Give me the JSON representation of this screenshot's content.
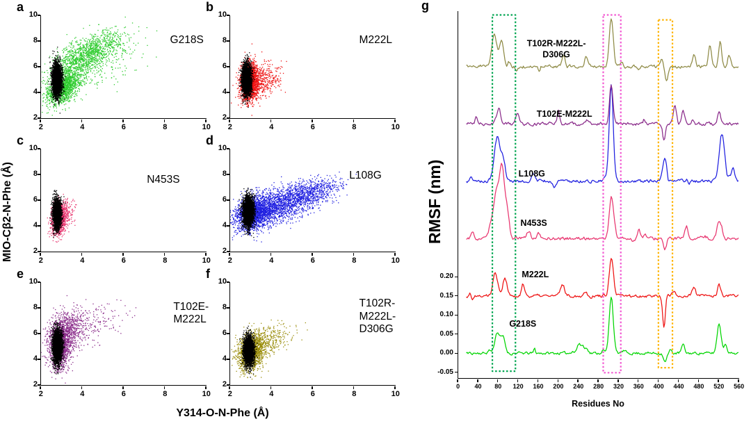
{
  "figure": {
    "scatter_xlabel": "Y314-O-N-Phe (Å)",
    "scatter_ylabel": "MIO-Cβ2-N-Phe (Å)"
  },
  "chart_data": [
    {
      "type": "scatter",
      "panel": "a",
      "label": "G218S",
      "color": "#2ecc2e",
      "seed": 101,
      "xlim": [
        2,
        10
      ],
      "ylim": [
        2,
        10
      ],
      "xticks": [
        2,
        4,
        6,
        8,
        10
      ],
      "yticks": [
        2,
        4,
        6,
        8,
        10
      ],
      "label_pos": [
        0.62,
        0.06
      ],
      "clusters": [
        {
          "cx": 3.05,
          "cy": 4.35,
          "sx": 0.38,
          "sy": 0.62,
          "rho": 0.35,
          "n": 1300
        },
        {
          "cx": 4.55,
          "cy": 7.25,
          "sx": 0.85,
          "sy": 0.8,
          "rho": 0.6,
          "n": 850
        },
        {
          "cx": 3.6,
          "cy": 5.9,
          "sx": 0.65,
          "sy": 1.0,
          "rho": 0.45,
          "n": 650
        },
        {
          "cx": 5.3,
          "cy": 6.3,
          "sx": 0.9,
          "sy": 1.1,
          "rho": 0.2,
          "n": 140
        }
      ],
      "black_cluster": {
        "cx": 2.78,
        "cy": 5.0,
        "sx": 0.11,
        "sy": 0.62,
        "n": 3200
      }
    },
    {
      "type": "scatter",
      "panel": "b",
      "label": "M222L",
      "color": "#ee1111",
      "seed": 102,
      "xlim": [
        2,
        10
      ],
      "ylim": [
        2,
        10
      ],
      "xticks": [
        2,
        4,
        6,
        8,
        10
      ],
      "yticks": [
        2,
        4,
        6,
        8,
        10
      ],
      "label_pos": [
        0.62,
        0.06
      ],
      "clusters": [
        {
          "cx": 2.92,
          "cy": 4.85,
          "sx": 0.2,
          "sy": 0.72,
          "rho": 0.1,
          "n": 1900
        },
        {
          "cx": 3.35,
          "cy": 4.75,
          "sx": 0.42,
          "sy": 0.75,
          "rho": 0.4,
          "n": 450
        },
        {
          "cx": 4.05,
          "cy": 5.0,
          "sx": 0.3,
          "sy": 0.5,
          "rho": 0.2,
          "n": 70
        }
      ],
      "black_cluster": {
        "cx": 2.8,
        "cy": 5.05,
        "sx": 0.11,
        "sy": 0.6,
        "n": 3000
      }
    },
    {
      "type": "scatter",
      "panel": "c",
      "label": "N453S",
      "color": "#e8356f",
      "seed": 103,
      "xlim": [
        2,
        10
      ],
      "ylim": [
        2,
        10
      ],
      "xticks": [
        2,
        4,
        6,
        8,
        10
      ],
      "yticks": [
        2,
        4,
        6,
        8,
        10
      ],
      "label_pos": [
        0.48,
        0.12
      ],
      "clusters": [
        {
          "cx": 2.85,
          "cy": 4.55,
          "sx": 0.16,
          "sy": 0.55,
          "rho": 0.1,
          "n": 1300
        },
        {
          "cx": 3.05,
          "cy": 4.9,
          "sx": 0.28,
          "sy": 0.65,
          "rho": 0.3,
          "n": 280
        }
      ],
      "black_cluster": {
        "cx": 2.78,
        "cy": 4.95,
        "sx": 0.1,
        "sy": 0.55,
        "n": 2600
      }
    },
    {
      "type": "scatter",
      "panel": "d",
      "label": "L108G",
      "color": "#1f1fe0",
      "seed": 104,
      "xlim": [
        2,
        10
      ],
      "ylim": [
        2,
        10
      ],
      "xticks": [
        2,
        4,
        6,
        8,
        10
      ],
      "yticks": [
        2,
        4,
        6,
        8,
        10
      ],
      "label_pos": [
        0.56,
        0.08
      ],
      "clusters": [
        {
          "cx": 3.15,
          "cy": 5.0,
          "sx": 0.42,
          "sy": 0.7,
          "rho": 0.3,
          "n": 1600
        },
        {
          "cx": 4.4,
          "cy": 5.6,
          "sx": 0.95,
          "sy": 0.75,
          "rho": 0.55,
          "n": 1600
        },
        {
          "cx": 5.9,
          "cy": 6.6,
          "sx": 0.7,
          "sy": 0.55,
          "rho": 0.45,
          "n": 450
        },
        {
          "cx": 6.9,
          "cy": 7.1,
          "sx": 0.35,
          "sy": 0.35,
          "rho": 0.2,
          "n": 50
        }
      ],
      "black_cluster": {
        "cx": 2.88,
        "cy": 5.1,
        "sx": 0.13,
        "sy": 0.6,
        "n": 3000
      }
    },
    {
      "type": "scatter",
      "panel": "e",
      "label": "T102E-M222L",
      "label_lines": [
        "T102E-",
        "M222L"
      ],
      "color": "#8a2b8a",
      "seed": 105,
      "xlim": [
        2,
        10
      ],
      "ylim": [
        2,
        10
      ],
      "xticks": [
        2,
        4,
        6,
        8,
        10
      ],
      "yticks": [
        2,
        4,
        6,
        8,
        10
      ],
      "label_pos": [
        0.64,
        0.06
      ],
      "clusters": [
        {
          "cx": 2.95,
          "cy": 5.15,
          "sx": 0.28,
          "sy": 0.95,
          "rho": 0.15,
          "n": 1500
        },
        {
          "cx": 3.35,
          "cy": 6.3,
          "sx": 0.5,
          "sy": 0.85,
          "rho": 0.4,
          "n": 480
        },
        {
          "cx": 4.2,
          "cy": 6.7,
          "sx": 0.8,
          "sy": 0.8,
          "rho": 0.3,
          "n": 140
        },
        {
          "cx": 5.2,
          "cy": 7.1,
          "sx": 0.7,
          "sy": 0.7,
          "rho": 0.2,
          "n": 40
        }
      ],
      "black_cluster": {
        "cx": 2.8,
        "cy": 5.0,
        "sx": 0.11,
        "sy": 0.65,
        "n": 3000
      }
    },
    {
      "type": "scatter",
      "panel": "f",
      "label": "T102R-M222L-D306G",
      "label_lines": [
        "T102R-",
        "M222L-",
        "D306G"
      ],
      "color": "#9a8d0c",
      "seed": 106,
      "xlim": [
        2,
        10
      ],
      "ylim": [
        2,
        10
      ],
      "xticks": [
        2,
        4,
        6,
        8,
        10
      ],
      "yticks": [
        2,
        4,
        6,
        8,
        10
      ],
      "label_pos": [
        0.62,
        0.03
      ],
      "clusters": [
        {
          "cx": 3.0,
          "cy": 4.55,
          "sx": 0.3,
          "sy": 0.68,
          "rho": 0.2,
          "n": 1500
        },
        {
          "cx": 3.5,
          "cy": 5.2,
          "sx": 0.5,
          "sy": 0.7,
          "rho": 0.5,
          "n": 380
        },
        {
          "cx": 4.3,
          "cy": 5.6,
          "sx": 0.6,
          "sy": 0.55,
          "rho": 0.4,
          "n": 70
        }
      ],
      "black_cluster": {
        "cx": 2.9,
        "cy": 4.65,
        "sx": 0.12,
        "sy": 0.55,
        "n": 3000
      }
    },
    {
      "type": "line",
      "panel": "g",
      "xlabel": "Residues No",
      "ylabel": "RMSF (nm)",
      "xlim": [
        0,
        560
      ],
      "ylim": [
        -0.065,
        0.895
      ],
      "xticks": [
        0,
        40,
        80,
        120,
        160,
        200,
        240,
        280,
        320,
        360,
        400,
        440,
        480,
        520,
        560
      ],
      "ytick_labels": [
        "0.20",
        "0.15",
        "0.10",
        "0.05",
        "0.00",
        "-0.05"
      ],
      "series": [
        {
          "label": "G218S",
          "color": "#00d500",
          "baseline": 0.0,
          "noise": 0.006,
          "seed": 11,
          "label_x": 130,
          "label_y": 0.075,
          "peaks": [
            {
              "c": 78,
              "w": 5,
              "h": 0.055
            },
            {
              "c": 90,
              "w": 4,
              "h": 0.035
            },
            {
              "c": 248,
              "w": 3,
              "h": 0.02
            },
            {
              "c": 305,
              "w": 4,
              "h": 0.15
            },
            {
              "c": 412,
              "w": 3,
              "h": -0.028
            },
            {
              "c": 448,
              "w": 3,
              "h": 0.022
            },
            {
              "c": 520,
              "w": 4,
              "h": 0.078
            },
            {
              "c": 533,
              "w": 3,
              "h": 0.03
            }
          ]
        },
        {
          "label": "M222L",
          "color": "#ee1111",
          "baseline": 0.15,
          "noise": 0.007,
          "seed": 22,
          "label_x": 155,
          "label_y": 0.205,
          "peaks": [
            {
              "c": 74,
              "w": 5,
              "h": 0.058
            },
            {
              "c": 93,
              "w": 4,
              "h": 0.048
            },
            {
              "c": 130,
              "w": 3,
              "h": 0.02
            },
            {
              "c": 208,
              "w": 4,
              "h": 0.03
            },
            {
              "c": 305,
              "w": 4,
              "h": 0.095
            },
            {
              "c": 410,
              "w": 2.5,
              "h": -0.085
            },
            {
              "c": 470,
              "w": 3,
              "h": 0.025
            },
            {
              "c": 520,
              "w": 3,
              "h": 0.028
            }
          ]
        },
        {
          "label": "N453S",
          "color": "#e8356f",
          "baseline": 0.3,
          "noise": 0.007,
          "seed": 33,
          "label_x": 152,
          "label_y": 0.338,
          "peaks": [
            {
              "c": 76,
              "w": 7,
              "h": 0.12
            },
            {
              "c": 88,
              "w": 5,
              "h": 0.16
            },
            {
              "c": 98,
              "w": 4,
              "h": 0.06
            },
            {
              "c": 305,
              "w": 4,
              "h": 0.105
            },
            {
              "c": 360,
              "w": 3,
              "h": 0.025
            },
            {
              "c": 412,
              "w": 3,
              "h": -0.03
            },
            {
              "c": 455,
              "w": 3,
              "h": 0.03
            },
            {
              "c": 520,
              "w": 4,
              "h": 0.045
            }
          ]
        },
        {
          "label": "L108G",
          "color": "#1f1fe0",
          "baseline": 0.45,
          "noise": 0.007,
          "seed": 44,
          "label_x": 148,
          "label_y": 0.468,
          "peaks": [
            {
              "c": 78,
              "w": 6,
              "h": 0.115
            },
            {
              "c": 90,
              "w": 4,
              "h": 0.05
            },
            {
              "c": 150,
              "w": 3,
              "h": 0.02
            },
            {
              "c": 305,
              "w": 4,
              "h": 0.25
            },
            {
              "c": 412,
              "w": 4,
              "h": 0.06
            },
            {
              "c": 525,
              "w": 5,
              "h": 0.12
            },
            {
              "c": 548,
              "w": 3,
              "h": 0.04
            }
          ]
        },
        {
          "label": "T102E-M222L",
          "color": "#8a2b8a",
          "baseline": 0.6,
          "noise": 0.007,
          "seed": 55,
          "label_x": 213,
          "label_y": 0.625,
          "peaks": [
            {
              "c": 80,
              "w": 4,
              "h": 0.045
            },
            {
              "c": 118,
              "w": 3,
              "h": 0.03
            },
            {
              "c": 200,
              "w": 3,
              "h": 0.025
            },
            {
              "c": 305,
              "w": 3.5,
              "h": 0.105
            },
            {
              "c": 410,
              "w": 2.5,
              "h": -0.045
            },
            {
              "c": 432,
              "w": 3,
              "h": 0.05
            },
            {
              "c": 448,
              "w": 3,
              "h": 0.035
            },
            {
              "c": 520,
              "w": 3,
              "h": 0.03
            }
          ]
        },
        {
          "label": "T102R-M222L-D306G",
          "label_lines": [
            "T102R-M222L-",
            "D306G"
          ],
          "color": "#8e8a45",
          "baseline": 0.75,
          "noise": 0.007,
          "seed": 66,
          "label_x": 197,
          "label_y": 0.795,
          "peaks": [
            {
              "c": 72,
              "w": 5,
              "h": 0.088
            },
            {
              "c": 86,
              "w": 4,
              "h": 0.07
            },
            {
              "c": 210,
              "w": 3,
              "h": 0.03
            },
            {
              "c": 255,
              "w": 3,
              "h": 0.025
            },
            {
              "c": 305,
              "w": 4,
              "h": 0.128
            },
            {
              "c": 415,
              "w": 3,
              "h": -0.035
            },
            {
              "c": 470,
              "w": 3,
              "h": 0.03
            },
            {
              "c": 502,
              "w": 3,
              "h": 0.055
            },
            {
              "c": 522,
              "w": 3,
              "h": 0.065
            },
            {
              "c": 540,
              "w": 3,
              "h": 0.03
            }
          ]
        }
      ],
      "boxes": [
        {
          "x1": 68,
          "x2": 114,
          "y1": -0.047,
          "y2": 0.885,
          "color": "#00a550"
        },
        {
          "x1": 289,
          "x2": 324,
          "y1": -0.051,
          "y2": 0.885,
          "color": "#f25ad2"
        },
        {
          "x1": 399,
          "x2": 427,
          "y1": -0.038,
          "y2": 0.872,
          "color": "#ffb400"
        }
      ]
    }
  ]
}
